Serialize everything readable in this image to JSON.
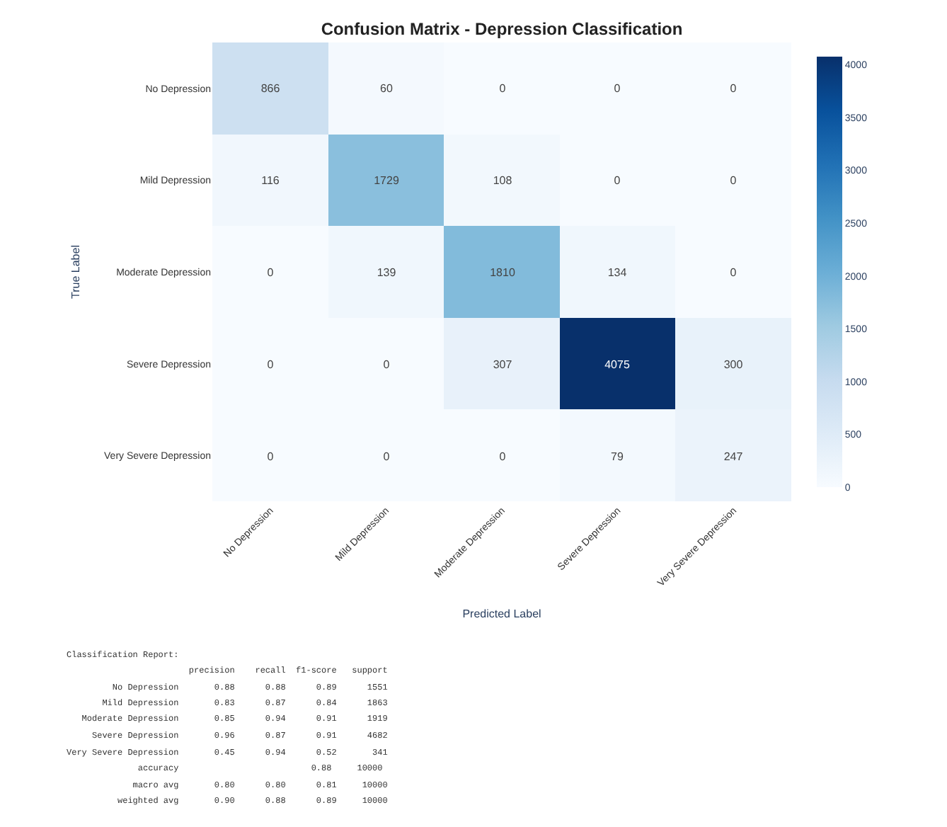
{
  "chart_data": {
    "type": "heatmap",
    "title": "Confusion Matrix - Depression Classification",
    "xlabel": "Predicted Label",
    "ylabel": "True Label",
    "categories": [
      "No Depression",
      "Mild Depression",
      "Moderate Depression",
      "Severe Depression",
      "Very Severe Depression"
    ],
    "y_categories": [
      "No Depression",
      "Mild Depression",
      "Moderate Depression",
      "Severe Depression",
      "Very Severe Depression"
    ],
    "cells": [
      [
        866,
        60,
        0,
        0,
        0
      ],
      [
        116,
        1729,
        108,
        0,
        0
      ],
      [
        0,
        139,
        1810,
        134,
        0
      ],
      [
        0,
        0,
        307,
        4075,
        300
      ],
      [
        0,
        0,
        0,
        79,
        247
      ]
    ],
    "data_labels": true,
    "clim": [
      0,
      4075
    ],
    "cticks": [
      0,
      500,
      1000,
      1500,
      2000,
      2500,
      3000,
      3500,
      4000
    ],
    "annotations": [
      "Classification Report:",
      "                        precision    recall  f1-score   support",
      "         No Depression       0.88      0.88      0.89      1551",
      "       Mild Depression       0.83      0.87      0.84      1863",
      "   Moderate Depression       0.85      0.94      0.91      1919",
      "     Severe Depression       0.96      0.87      0.91      4682",
      "Very Severe Depression       0.45      0.94      0.52       341",
      "              accuracy                          0.88     10000",
      "             macro avg       0.80      0.80      0.81     10000",
      "          weighted avg       0.90      0.88      0.89     10000"
    ]
  }
}
